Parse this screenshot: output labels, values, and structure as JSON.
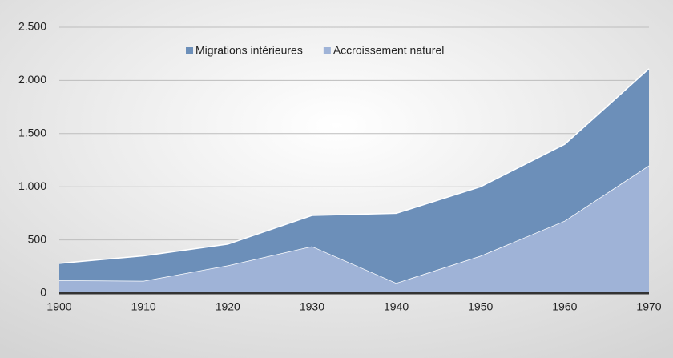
{
  "chart_data": {
    "type": "stacked_area",
    "x": [
      1900,
      1910,
      1920,
      1930,
      1940,
      1950,
      1960,
      1970
    ],
    "series": [
      {
        "name": "Migrations intérieures",
        "color": "#6c8fb9",
        "values": [
          160,
          235,
          200,
          290,
          655,
          650,
          720,
          910
        ]
      },
      {
        "name": "Accroissement naturel",
        "color": "#9fb3d7",
        "values": [
          120,
          115,
          260,
          440,
          95,
          350,
          680,
          1200
        ]
      }
    ],
    "xlim": [
      1900,
      1970
    ],
    "xticks": [
      1900,
      1910,
      1920,
      1930,
      1940,
      1950,
      1960,
      1970
    ],
    "ylim": [
      0,
      2500
    ],
    "yticks": [
      0,
      500,
      {
        "value": 1000,
        "label": "1.000"
      },
      {
        "value": 1500,
        "label": "1.500"
      },
      {
        "value": 2000,
        "label": "2.000"
      },
      {
        "value": 2500,
        "label": "2.500"
      }
    ],
    "grid": true,
    "legend": "top"
  }
}
